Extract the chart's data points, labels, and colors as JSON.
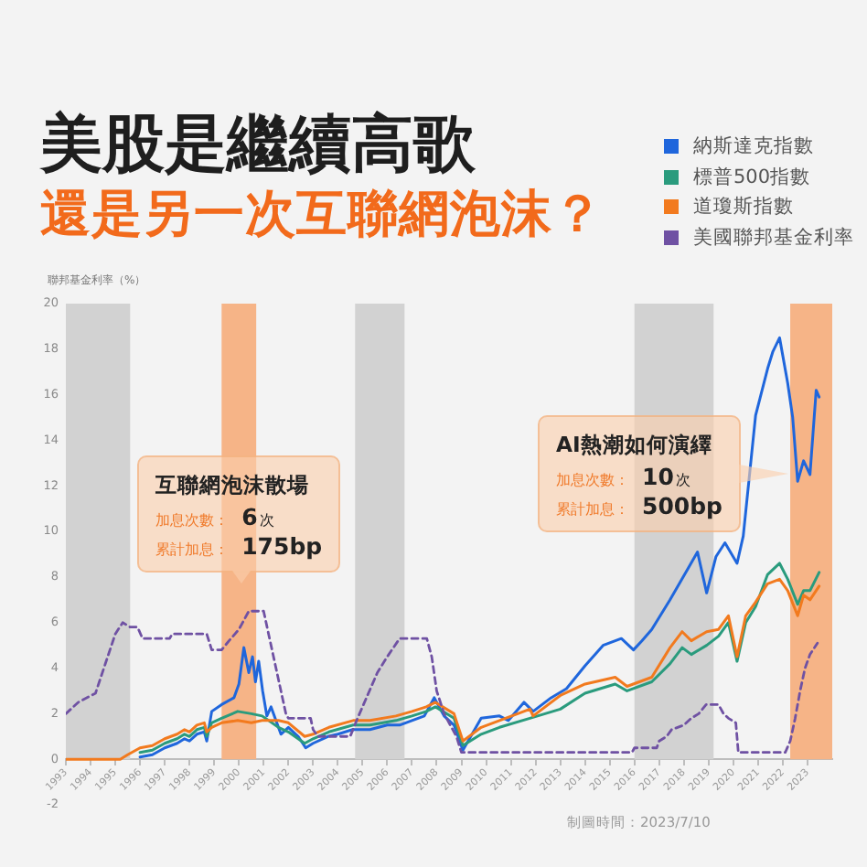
{
  "chart_data": {
    "type": "line",
    "title": "美股是繼續高歌",
    "subtitle": "還是另一次互聯網泡沫？",
    "ylabel": "聯邦基金利率（%）",
    "xlim": [
      1993,
      2024
    ],
    "xticks": [
      1993,
      1994,
      1995,
      1996,
      1997,
      1998,
      1999,
      2000,
      2001,
      2002,
      2003,
      2004,
      2005,
      2006,
      2007,
      2008,
      2009,
      2010,
      2011,
      2012,
      2013,
      2014,
      2015,
      2016,
      2017,
      2018,
      2019,
      2020,
      2021,
      2022,
      2023
    ],
    "ylim": [
      -2,
      20
    ],
    "yticks": [
      -2,
      0,
      2,
      4,
      6,
      8,
      10,
      12,
      14,
      16,
      18,
      20
    ],
    "legend": "top right",
    "series": [
      {
        "name": "納斯達克指數",
        "color": "#1f66dc",
        "x": [
          1996,
          1996.5,
          1997,
          1997.5,
          1997.8,
          1998,
          1998.3,
          1998.6,
          1998.7,
          1998.9,
          1999.3,
          1999.8,
          2000,
          2000.2,
          2000.4,
          2000.55,
          2000.67,
          2000.8,
          2000.96,
          2001.13,
          2001.3,
          2001.7,
          2002,
          2002.4,
          2002.7,
          2003,
          2003.6,
          2004,
          2004.6,
          2005.3,
          2006,
          2006.5,
          2007,
          2007.5,
          2007.9,
          2008.3,
          2008.7,
          2009.06,
          2009.8,
          2010.54,
          2010.9,
          2011.53,
          2011.9,
          2012.63,
          2013.25,
          2014,
          2014.73,
          2015.47,
          2015.96,
          2016.3,
          2016.7,
          2017.44,
          2018.18,
          2018.55,
          2018.92,
          2019.3,
          2019.66,
          2020.15,
          2020.4,
          2020.9,
          2021.4,
          2021.6,
          2021.87,
          2022.2,
          2022.4,
          2022.6,
          2022.84,
          2023.1,
          2023.35,
          2023.47
        ],
        "values": [
          0.1,
          0.2,
          0.5,
          0.7,
          0.9,
          0.8,
          1.1,
          1.2,
          0.8,
          2.1,
          2.4,
          2.7,
          3.3,
          4.9,
          3.8,
          4.5,
          3.4,
          4.3,
          3,
          1.9,
          2.3,
          1.1,
          1.4,
          1,
          0.5,
          0.7,
          1,
          1.1,
          1.3,
          1.3,
          1.5,
          1.5,
          1.7,
          1.9,
          2.7,
          1.9,
          1.5,
          0.4,
          1.8,
          1.9,
          1.7,
          2.5,
          2.1,
          2.7,
          3.1,
          4.1,
          5,
          5.3,
          4.8,
          5.2,
          5.7,
          7,
          8.4,
          9.1,
          7.3,
          8.9,
          9.5,
          8.6,
          9.8,
          15.1,
          17.2,
          17.9,
          18.5,
          16.5,
          15,
          12.2,
          13.1,
          12.5,
          16.2,
          15.9
        ]
      },
      {
        "name": "標普500指數",
        "color": "#2a9b7d",
        "x": [
          1996,
          1996.5,
          1997,
          1997.5,
          1997.8,
          1998,
          1998.3,
          1998.6,
          1998.7,
          1998.9,
          1999.3,
          1999.95,
          2000.5,
          2000.94,
          2001.6,
          2002,
          2002.66,
          2003,
          2003.64,
          2004.62,
          2005.3,
          2006.35,
          2007,
          2007.58,
          2007.95,
          2008.7,
          2009.06,
          2009.8,
          2010.54,
          2011.77,
          2013,
          2014,
          2015.22,
          2015.7,
          2016.7,
          2017.44,
          2017.93,
          2018.3,
          2018.92,
          2019.4,
          2019.8,
          2020.15,
          2020.5,
          2020.9,
          2021.38,
          2021.87,
          2022.2,
          2022.6,
          2022.84,
          2023.1,
          2023.47
        ],
        "values": [
          0.3,
          0.4,
          0.7,
          0.9,
          1.1,
          1,
          1.3,
          1.4,
          1,
          1.6,
          1.8,
          2.1,
          2,
          1.9,
          1.4,
          1.2,
          0.7,
          0.9,
          1.2,
          1.5,
          1.5,
          1.7,
          1.9,
          2.1,
          2.3,
          1.8,
          0.6,
          1.1,
          1.4,
          1.8,
          2.2,
          2.9,
          3.3,
          3,
          3.4,
          4.2,
          4.9,
          4.6,
          5,
          5.4,
          6,
          4.3,
          6,
          6.7,
          8.1,
          8.6,
          7.9,
          6.8,
          7.4,
          7.4,
          8.2
        ]
      },
      {
        "name": "道瓊斯指數",
        "color": "#f27a1e",
        "x": [
          1993,
          1995.2,
          1995.5,
          1996,
          1996.5,
          1997,
          1997.5,
          1997.8,
          1998,
          1998.3,
          1998.6,
          1998.7,
          1998.9,
          1999.3,
          1999.95,
          2000.5,
          2000.94,
          2001.6,
          2002,
          2002.66,
          2003,
          2003.64,
          2004.62,
          2005.3,
          2006.35,
          2007,
          2007.58,
          2007.95,
          2008.7,
          2009.06,
          2009.8,
          2010.54,
          2011.77,
          2011.9,
          2013,
          2014,
          2015.22,
          2015.7,
          2016.7,
          2017.44,
          2017.93,
          2018.3,
          2018.92,
          2019.4,
          2019.8,
          2020.15,
          2020.5,
          2020.9,
          2021.38,
          2021.87,
          2022.2,
          2022.6,
          2022.84,
          2023.1,
          2023.47
        ],
        "values": [
          0,
          0,
          0.2,
          0.5,
          0.6,
          0.9,
          1.1,
          1.3,
          1.2,
          1.5,
          1.6,
          1.2,
          1.4,
          1.6,
          1.7,
          1.6,
          1.7,
          1.7,
          1.6,
          1,
          1.1,
          1.4,
          1.7,
          1.7,
          1.9,
          2.1,
          2.3,
          2.5,
          2,
          0.8,
          1.4,
          1.7,
          2.2,
          1.9,
          2.8,
          3.3,
          3.6,
          3.2,
          3.6,
          4.9,
          5.6,
          5.2,
          5.6,
          5.7,
          6.3,
          4.5,
          6.3,
          6.9,
          7.7,
          7.9,
          7.4,
          6.3,
          7.2,
          7,
          7.6
        ]
      },
      {
        "name": "美國聯邦基金利率",
        "color": "#6f51a3",
        "line_style": "dashed",
        "x": [
          1993,
          1993.5,
          1994.2,
          1994.6,
          1995,
          1995.3,
          1995.6,
          1995.9,
          1996.1,
          1997.2,
          1997.3,
          1998.7,
          1998.9,
          1999.3,
          1999.6,
          2000,
          2000.4,
          2001,
          2001.3,
          2001.6,
          2001.9,
          2002,
          2002.9,
          2003,
          2003.2,
          2004.5,
          2004.8,
          2005.2,
          2005.6,
          2006,
          2006.5,
          2007.6,
          2007.8,
          2008,
          2008.3,
          2008.8,
          2009,
          2015.9,
          2016,
          2016.9,
          2017,
          2017.3,
          2017.5,
          2018,
          2018.3,
          2018.6,
          2018.9,
          2019.4,
          2019.6,
          2019.8,
          2020.1,
          2020.2,
          2022.1,
          2022.3,
          2022.5,
          2022.7,
          2022.9,
          2023.1,
          2023.4
        ],
        "values": [
          2,
          2.5,
          2.9,
          4.2,
          5.5,
          6,
          5.8,
          5.8,
          5.3,
          5.3,
          5.5,
          5.5,
          4.8,
          4.8,
          5.2,
          5.7,
          6.5,
          6.5,
          5,
          3.5,
          2,
          1.8,
          1.8,
          1.3,
          1,
          1,
          1.8,
          2.8,
          3.8,
          4.5,
          5.3,
          5.3,
          4.5,
          3,
          2,
          1,
          0.3,
          0.3,
          0.5,
          0.5,
          0.8,
          1,
          1.3,
          1.5,
          1.8,
          2,
          2.4,
          2.4,
          2,
          1.8,
          1.6,
          0.3,
          0.3,
          0.8,
          1.8,
          3,
          4,
          4.6,
          5.1
        ]
      }
    ],
    "bands": [
      {
        "axis": "x",
        "from": 1993,
        "to": 1995.6,
        "color": "#d2d2d2"
      },
      {
        "axis": "x",
        "from": 1999.3,
        "to": 2000.7,
        "color": "#f6b487"
      },
      {
        "axis": "x",
        "from": 2004.7,
        "to": 2006.7,
        "color": "#d2d2d2"
      },
      {
        "axis": "x",
        "from": 2016,
        "to": 2019.2,
        "color": "#d2d2d2"
      },
      {
        "axis": "x",
        "from": 2022.3,
        "to": 2024,
        "color": "#f6b487"
      }
    ],
    "annotations": [
      "互聯網泡沫散場",
      "加息次數： 6次",
      "累計加息： 175bp",
      "AI熱潮如何演繹",
      "加息次數： 10次",
      "累計加息： 500bp",
      "制圖時間：2023/7/10"
    ]
  }
}
